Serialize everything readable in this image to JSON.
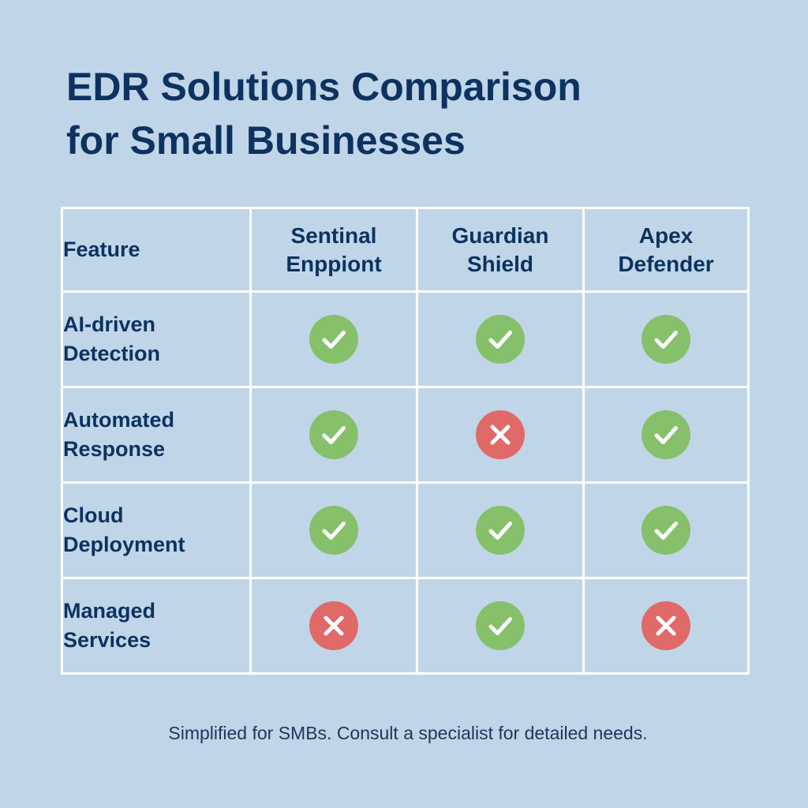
{
  "title": {
    "line1": "EDR Solutions Comparison",
    "line2": "for Small Businesses"
  },
  "table": {
    "headers": {
      "feature": "Feature",
      "vendors": [
        [
          "Sentinal",
          "Enppiont"
        ],
        [
          "Guardian",
          "Shield"
        ],
        [
          "Apex",
          "Defender"
        ]
      ]
    },
    "rows": [
      {
        "feature": [
          "AI-driven",
          "Detection"
        ],
        "marks": [
          "check",
          "check",
          "check"
        ]
      },
      {
        "feature": [
          "Automated",
          "Response"
        ],
        "marks": [
          "check",
          "cross",
          "check"
        ]
      },
      {
        "feature": [
          "Cloud",
          "Deployment"
        ],
        "marks": [
          "check",
          "check",
          "check"
        ]
      },
      {
        "feature": [
          "Managed",
          "Services"
        ],
        "marks": [
          "cross",
          "check",
          "cross"
        ]
      }
    ]
  },
  "footnote": "Simplified for SMBs. Consult a specialist for detailed needs.",
  "icons": {
    "check": "check-icon",
    "cross": "cross-icon"
  },
  "colors": {
    "background": "#c0d6e8",
    "text": "#0d3260",
    "grid": "#ffffff",
    "check": "#86c06a",
    "cross": "#df6a68",
    "cross_mark_alt": "#e02a36"
  }
}
